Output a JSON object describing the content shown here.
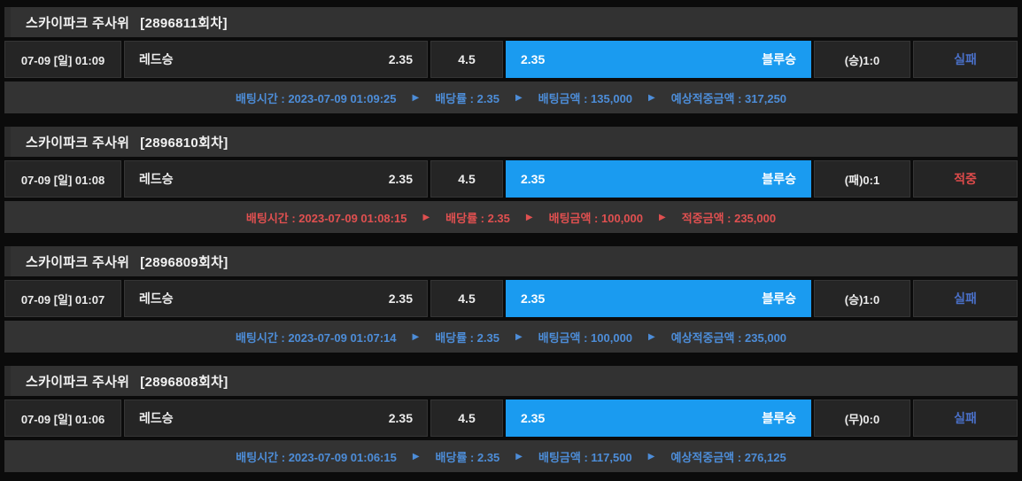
{
  "page": {
    "arrow": "▶"
  },
  "colors": {
    "blue_highlight": "#1a9bf0",
    "blue_footer_text": "#4d8dd8",
    "red_footer_text": "#e05050",
    "fail_status_text": "#4a70c8",
    "hit_status_text": "#e04b4b"
  },
  "blocks": [
    {
      "title": "스카이파크 주사위",
      "round": "[2896811회차]",
      "datetime": "07-09 [일] 01:09",
      "red_label": "레드승",
      "red_odds": "2.35",
      "draw_odds": "4.5",
      "blue_odds": "2.35",
      "blue_label": "블루승",
      "result": "(승)1:0",
      "status": "실패",
      "status_type": "fail",
      "theme": "blue",
      "footer_items": [
        "배팅시간 : 2023-07-09 01:09:25",
        "배당률 : 2.35",
        "배팅금액 : 135,000",
        "예상적중금액 : 317,250"
      ]
    },
    {
      "title": "스카이파크 주사위",
      "round": "[2896810회차]",
      "datetime": "07-09 [일] 01:08",
      "red_label": "레드승",
      "red_odds": "2.35",
      "draw_odds": "4.5",
      "blue_odds": "2.35",
      "blue_label": "블루승",
      "result": "(패)0:1",
      "status": "적중",
      "status_type": "hit",
      "theme": "red",
      "footer_items": [
        "배팅시간 : 2023-07-09 01:08:15",
        "배당률 : 2.35",
        "배팅금액 : 100,000",
        "적중금액 : 235,000"
      ]
    },
    {
      "title": "스카이파크 주사위",
      "round": "[2896809회차]",
      "datetime": "07-09 [일] 01:07",
      "red_label": "레드승",
      "red_odds": "2.35",
      "draw_odds": "4.5",
      "blue_odds": "2.35",
      "blue_label": "블루승",
      "result": "(승)1:0",
      "status": "실패",
      "status_type": "fail",
      "theme": "blue",
      "footer_items": [
        "배팅시간 : 2023-07-09 01:07:14",
        "배당률 : 2.35",
        "배팅금액 : 100,000",
        "예상적중금액 : 235,000"
      ]
    },
    {
      "title": "스카이파크 주사위",
      "round": "[2896808회차]",
      "datetime": "07-09 [일] 01:06",
      "red_label": "레드승",
      "red_odds": "2.35",
      "draw_odds": "4.5",
      "blue_odds": "2.35",
      "blue_label": "블루승",
      "result": "(무)0:0",
      "status": "실패",
      "status_type": "fail",
      "theme": "blue",
      "footer_items": [
        "배팅시간 : 2023-07-09 01:06:15",
        "배당률 : 2.35",
        "배팅금액 : 117,500",
        "예상적중금액 : 276,125"
      ]
    }
  ]
}
